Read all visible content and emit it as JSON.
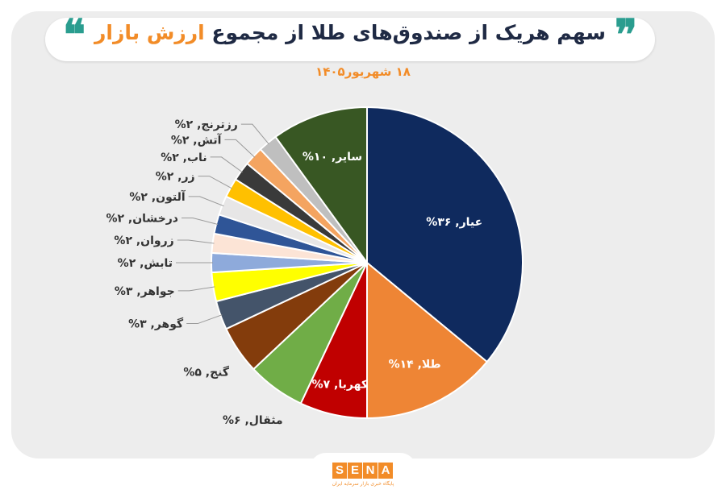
{
  "header": {
    "title_main": "سهم هریک از صندوق‌های طلا از مجموع",
    "title_accent": "ارزش بازار",
    "subtitle": "۱۸ شهریور۱۴۰۵",
    "quote_left": "❝",
    "quote_right": "❞"
  },
  "chart_data": {
    "type": "pie",
    "title": "سهم هریک از صندوق‌های طلا از مجموع ارزش بازار",
    "subtitle": "۱۸ شهریور۱۴۰۵",
    "start_angle_deg": 0,
    "direction": "clockwise",
    "slices": [
      {
        "label": "عیار",
        "value": 36,
        "display": "عیار, ۳۶%",
        "color": "#0f2a5e"
      },
      {
        "label": "طلا",
        "value": 14,
        "display": "طلا, ۱۴%",
        "color": "#ee8535"
      },
      {
        "label": "کهربا",
        "value": 7,
        "display": "کهربا, ۷%",
        "color": "#c00000"
      },
      {
        "label": "مثقال",
        "value": 6,
        "display": "مثقال, ۶%",
        "color": "#70ad47"
      },
      {
        "label": "گنج",
        "value": 5,
        "display": "گنج, ۵%",
        "color": "#833c0c"
      },
      {
        "label": "گوهر",
        "value": 3,
        "display": "گوهر, ۳%",
        "color": "#44546a"
      },
      {
        "label": "جواهر",
        "value": 3,
        "display": "جواهر, ۳%",
        "color": "#ffff00"
      },
      {
        "label": "تابش",
        "value": 2,
        "display": "تابش, ۲%",
        "color": "#8eaadb"
      },
      {
        "label": "زروان",
        "value": 2,
        "display": "زروان, ۲%",
        "color": "#fce4d6"
      },
      {
        "label": "درخشان",
        "value": 2,
        "display": "درخشان, ۲%",
        "color": "#2f5597"
      },
      {
        "label": "آلتون",
        "value": 2,
        "display": "آلتون, ۲%",
        "color": "#e7e6e6"
      },
      {
        "label": "زر",
        "value": 2,
        "display": "زر, ۲%",
        "color": "#ffc000"
      },
      {
        "label": "ناب",
        "value": 2,
        "display": "ناب, ۲%",
        "color": "#3a3a3a"
      },
      {
        "label": "آتش",
        "value": 2,
        "display": "آتش, ۲%",
        "color": "#f4a460"
      },
      {
        "label": "رزترنج",
        "value": 2,
        "display": "رزترنج, ۲%",
        "color": "#bfbfbf"
      },
      {
        "label": "سایر",
        "value": 10,
        "display": "سایر, ۱۰%",
        "color": "#385723"
      }
    ]
  },
  "logo": {
    "letters": [
      "S",
      "E",
      "N",
      "A"
    ],
    "tagline": "پایگاه خبری بازار سرمایه ایران",
    "color": "#f28c28"
  }
}
